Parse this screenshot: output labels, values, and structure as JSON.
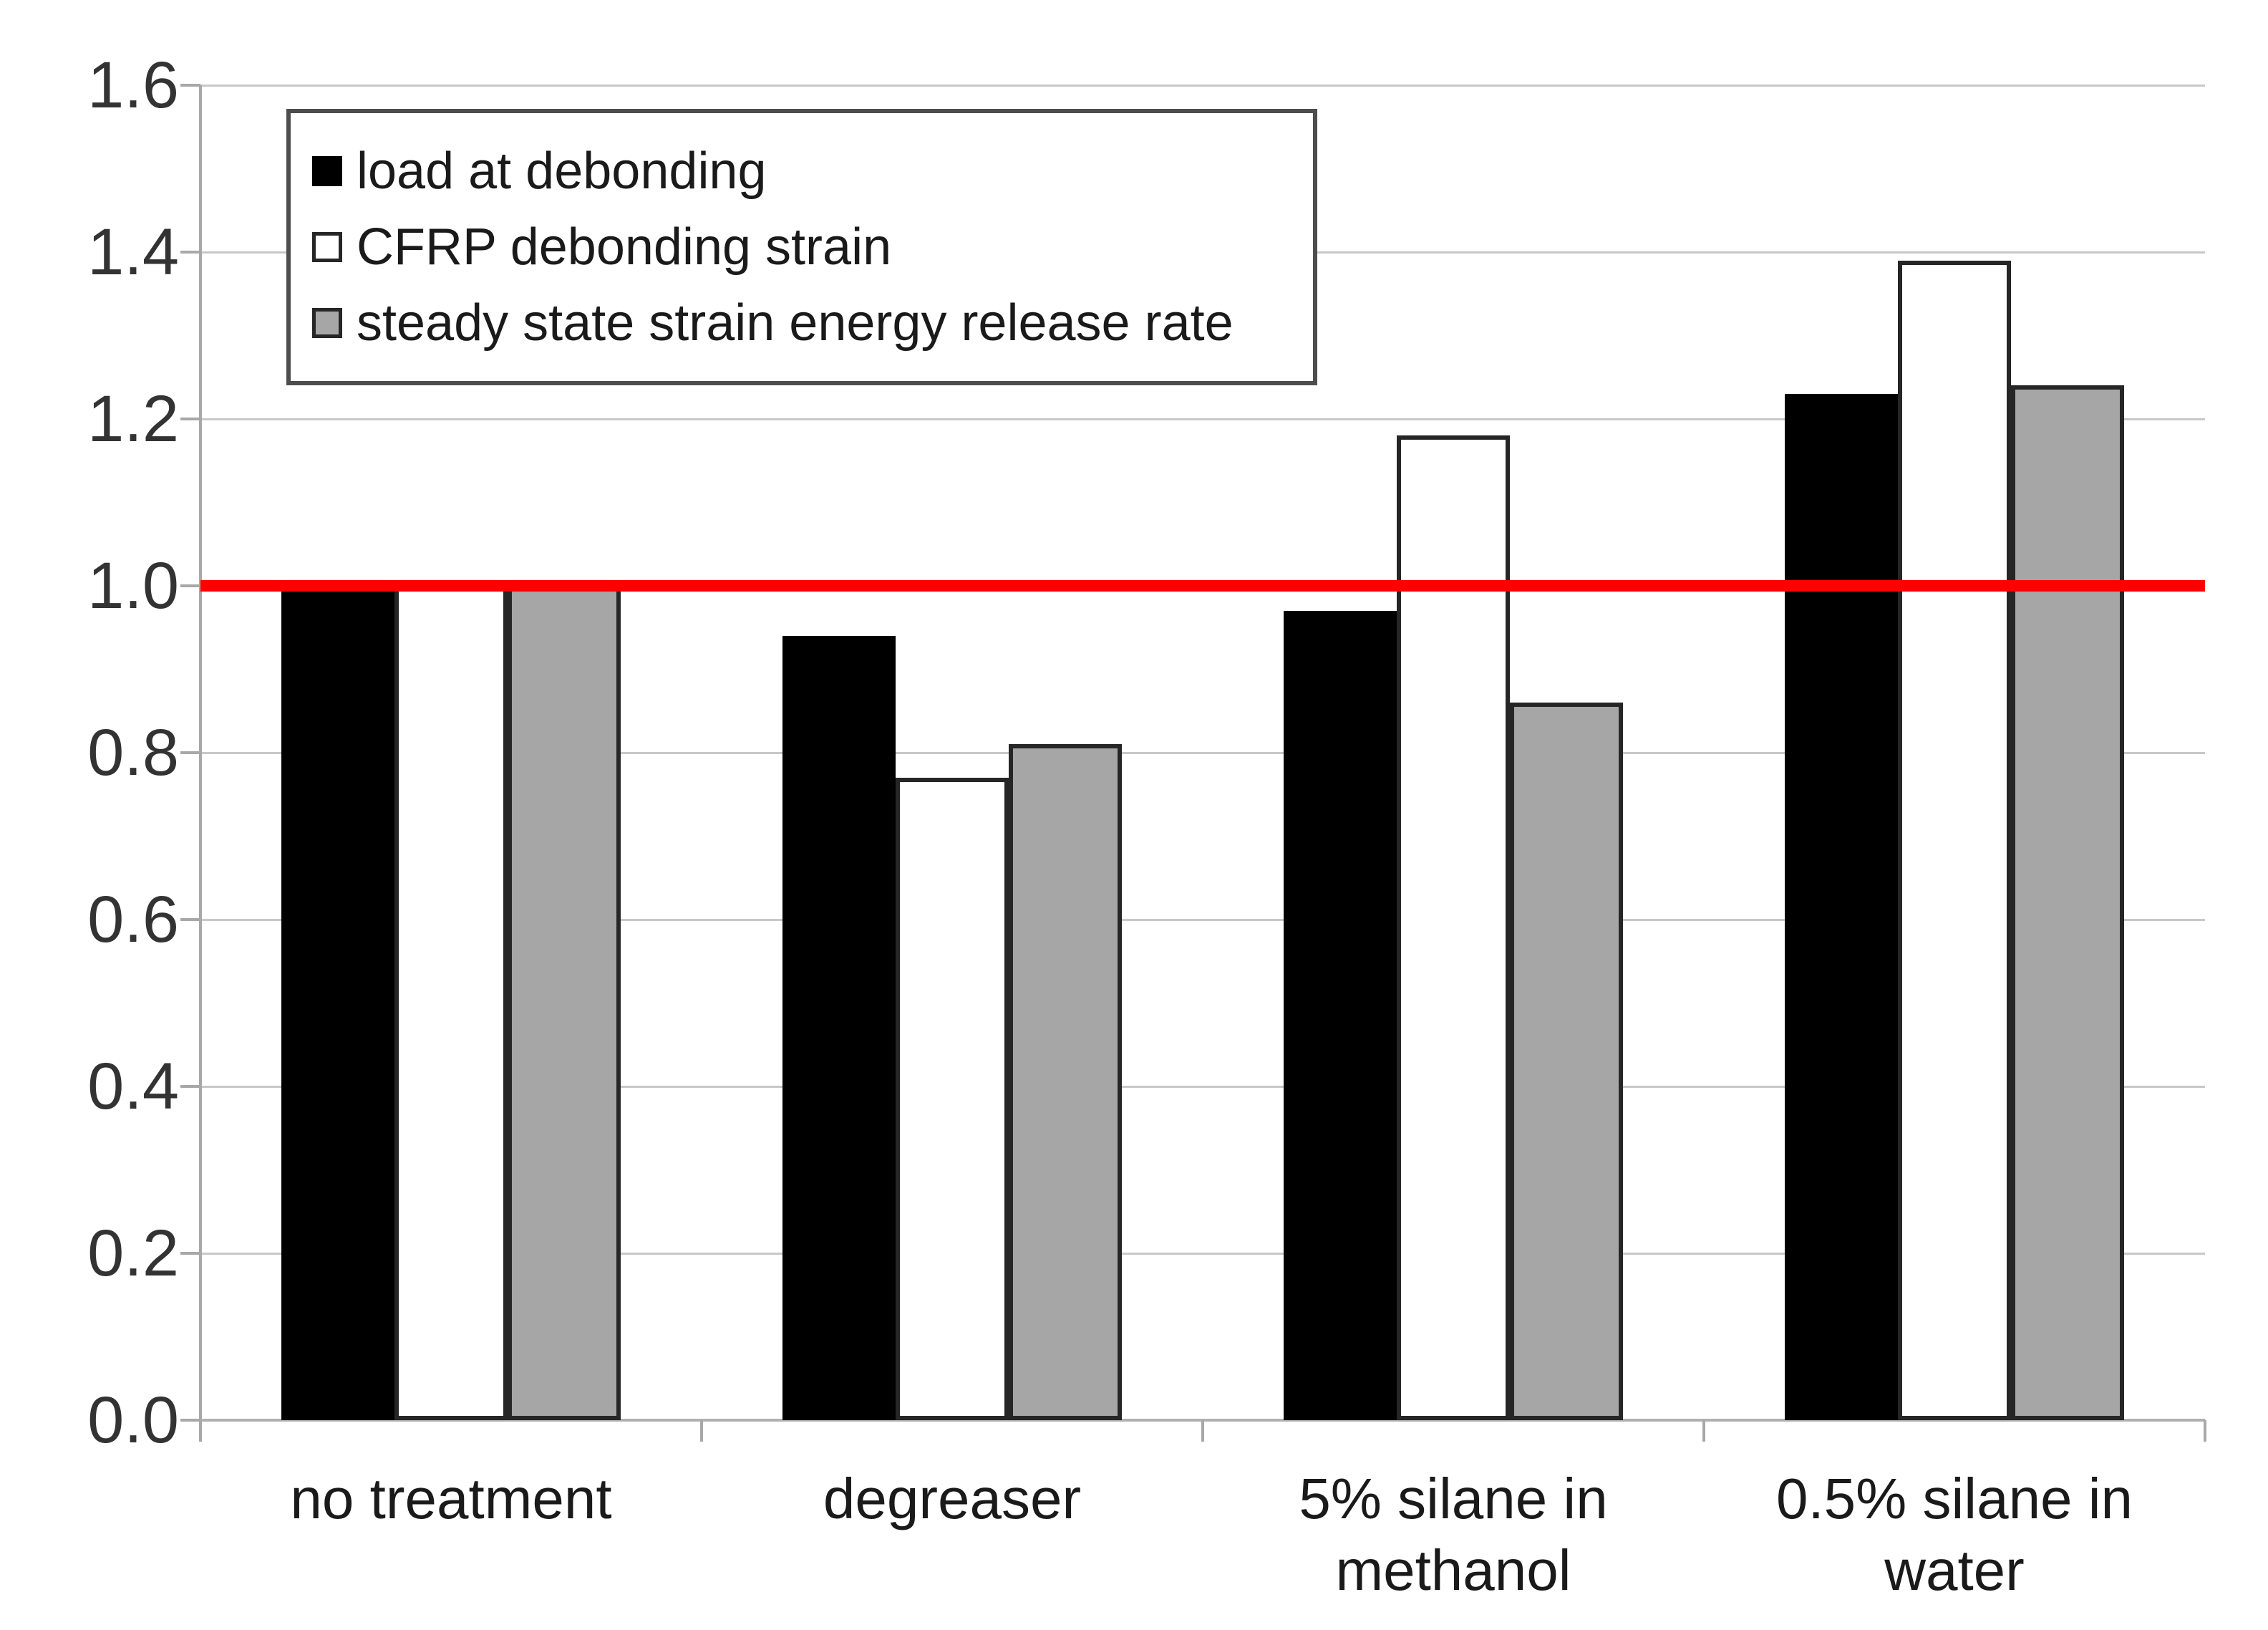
{
  "chart_data": {
    "type": "bar",
    "title": "",
    "xlabel": "",
    "ylabel": "",
    "categories": [
      "no treatment",
      "degreaser",
      "5% silane in methanol",
      "0.5% silane in water"
    ],
    "series": [
      {
        "name": "load at debonding",
        "color": "#000000",
        "border_color": "#000000",
        "values": [
          1.0,
          0.94,
          0.97,
          1.23
        ]
      },
      {
        "name": "CFRP debonding strain",
        "color": "#ffffff",
        "border_color": "#262626",
        "values": [
          1.0,
          0.77,
          1.18,
          1.39
        ]
      },
      {
        "name": "steady state strain energy release rate",
        "color": "#a6a6a6",
        "border_color": "#262626",
        "values": [
          1.0,
          0.81,
          0.86,
          1.24
        ]
      }
    ],
    "y_axis": {
      "min": 0.0,
      "max": 1.6,
      "step": 0.2,
      "tick_labels": [
        "0.0",
        "0.2",
        "0.4",
        "0.6",
        "0.8",
        "1.0",
        "1.2",
        "1.4",
        "1.6"
      ]
    },
    "reference_line": {
      "value": 1.0,
      "color": "#ff0000"
    },
    "grid": true,
    "legend_position": "top-left"
  }
}
